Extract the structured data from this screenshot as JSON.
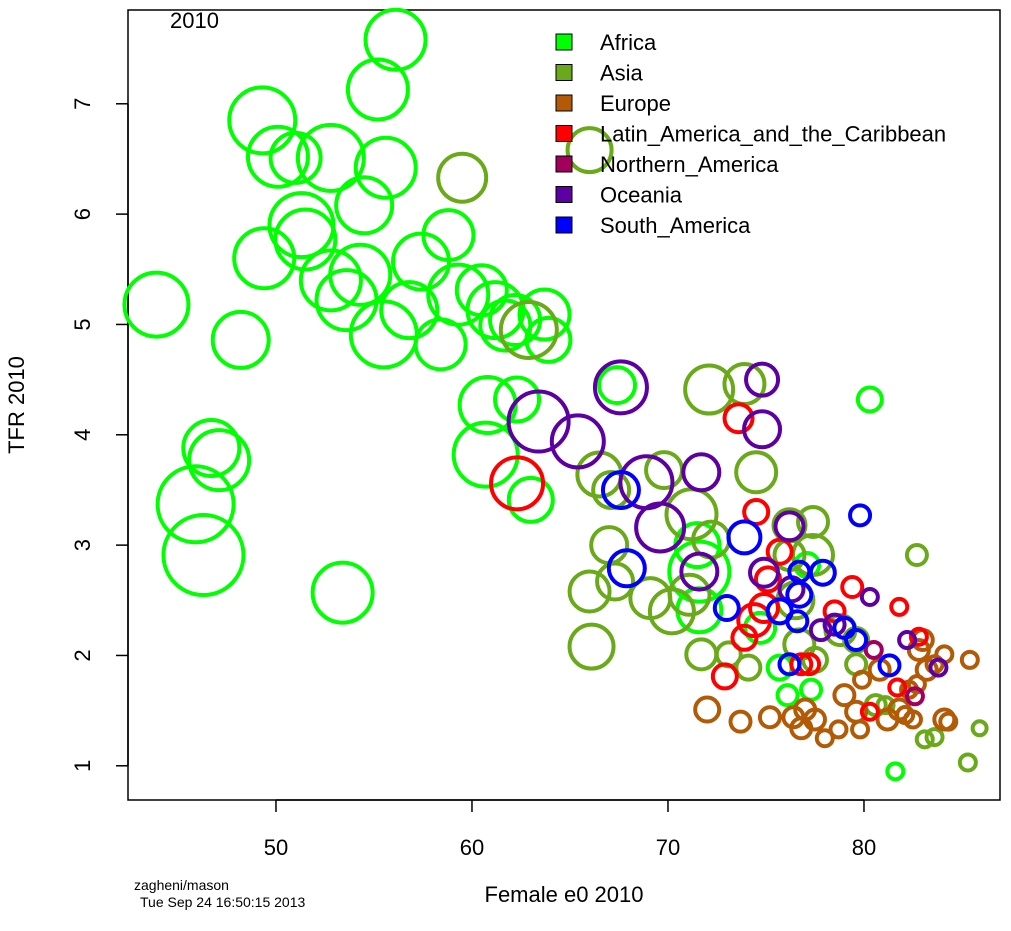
{
  "chart_data": {
    "type": "scatter",
    "annotation": "2010",
    "xlabel": "Female e0 2010",
    "ylabel": "TFR 2010",
    "footer": [
      "zagheni/mason",
      "Tue Sep 24 16:50:15 2013"
    ],
    "xlim": [
      42.45,
      86.94
    ],
    "ylim": [
      0.69,
      7.85
    ],
    "xticks": [
      50,
      60,
      70,
      80
    ],
    "yticks": [
      1,
      2,
      3,
      4,
      5,
      6,
      7
    ],
    "legend": "top-right",
    "series": [
      {
        "name": "Africa",
        "color": "#00ff00",
        "x": [
          56.1,
          55.2,
          49.3,
          50.1,
          51.0,
          52.8,
          55.6,
          54.5,
          51.3,
          51.5,
          49.4,
          43.9,
          48.2,
          52.8,
          54.3,
          53.6,
          55.5,
          56.8,
          57.4,
          58.8,
          58.4,
          59.3,
          60.5,
          61.2,
          61.7,
          62.2,
          63.7,
          63.9,
          60.8,
          62.3,
          60.7,
          46.7,
          47.1,
          45.9,
          46.3,
          53.4,
          63.0,
          67.4,
          71.5,
          71.6,
          71.6,
          74.7,
          77.1,
          80.3,
          81.6,
          77.3,
          75.7,
          76.1
        ],
        "values": [
          7.58,
          7.13,
          6.85,
          6.52,
          6.51,
          6.51,
          6.42,
          6.08,
          5.9,
          5.77,
          5.6,
          5.18,
          4.86,
          5.4,
          5.45,
          5.22,
          4.91,
          5.13,
          5.57,
          5.81,
          4.82,
          5.27,
          5.31,
          5.13,
          4.99,
          5.04,
          5.09,
          4.86,
          4.27,
          4.32,
          3.82,
          3.88,
          3.77,
          3.37,
          2.91,
          2.57,
          3.41,
          4.45,
          3.0,
          2.76,
          2.41,
          2.25,
          2.82,
          4.32,
          0.95,
          1.69,
          1.89,
          1.64
        ],
        "sizes": [
          3.0,
          3.0,
          3.3,
          3.0,
          2.5,
          3.3,
          3.0,
          2.8,
          3.2,
          3.0,
          3.0,
          3.2,
          2.8,
          3.0,
          3.0,
          3.0,
          3.3,
          2.8,
          2.8,
          2.5,
          2.5,
          3.0,
          2.5,
          2.8,
          2.5,
          2.5,
          2.5,
          2.2,
          2.8,
          2.2,
          3.2,
          2.8,
          3.0,
          3.8,
          4.0,
          3.0,
          2.2,
          1.8,
          2.2,
          3.0,
          2.2,
          1.5,
          1.2,
          1.2,
          0.8,
          1.0,
          1.2,
          1.0
        ]
      },
      {
        "name": "Asia",
        "color": "#6aaa1a",
        "x": [
          59.5,
          66.0,
          62.9,
          72.1,
          73.9,
          74.5,
          69.8,
          66.5,
          67.1,
          71.2,
          72.2,
          76.2,
          77.4,
          77.4,
          67.0,
          66.0,
          67.3,
          66.1,
          69.1,
          70.2,
          71.1,
          71.7,
          73.1,
          74.1,
          76.2,
          76.5,
          76.7,
          77.5,
          78.8,
          79.6,
          79.6,
          82.7,
          80.6,
          81.1,
          83.1,
          83.6,
          85.3,
          85.9
        ],
        "values": [
          6.33,
          6.58,
          4.95,
          4.41,
          4.46,
          3.66,
          3.68,
          3.64,
          3.5,
          3.28,
          3.05,
          3.18,
          3.21,
          2.91,
          3.0,
          2.58,
          2.67,
          2.08,
          2.52,
          2.4,
          2.55,
          2.01,
          2.01,
          1.89,
          2.91,
          2.5,
          2.1,
          1.96,
          2.23,
          2.14,
          1.92,
          2.91,
          1.55,
          1.55,
          1.24,
          1.26,
          1.03,
          1.34
        ],
        "sizes": [
          2.4,
          2.2,
          2.8,
          2.4,
          2.0,
          2.0,
          1.8,
          2.2,
          1.8,
          2.5,
          1.8,
          1.6,
          1.5,
          2.0,
          1.8,
          2.0,
          1.8,
          2.2,
          2.0,
          2.2,
          2.0,
          1.5,
          1.2,
          1.2,
          1.5,
          1.8,
          1.5,
          1.2,
          1.5,
          1.2,
          1.0,
          1.0,
          1.0,
          0.8,
          0.8,
          0.8,
          0.8,
          0.7
        ]
      },
      {
        "name": "Europe",
        "color": "#b35a06",
        "x": [
          72.0,
          73.7,
          75.2,
          76.4,
          76.8,
          77.5,
          78.0,
          78.7,
          79.0,
          79.6,
          79.8,
          81.2,
          80.8,
          82.1,
          82.5,
          82.8,
          83.0,
          83.2,
          83.6,
          84.1,
          85.4,
          84.1,
          84.3,
          81.8,
          82.3,
          79.9,
          82.7,
          77.0
        ],
        "values": [
          1.51,
          1.4,
          1.44,
          1.44,
          1.34,
          1.42,
          1.25,
          1.33,
          1.64,
          1.49,
          1.33,
          1.42,
          1.87,
          1.46,
          1.42,
          2.05,
          2.14,
          1.87,
          1.92,
          2.01,
          1.96,
          1.42,
          1.4,
          1.51,
          1.69,
          1.78,
          1.74,
          1.51
        ],
        "sizes": [
          1.2,
          1.0,
          1.0,
          1.0,
          1.0,
          1.0,
          0.8,
          0.8,
          1.0,
          1.0,
          0.8,
          1.0,
          1.0,
          0.8,
          0.8,
          1.0,
          1.0,
          1.0,
          0.8,
          0.8,
          0.8,
          1.0,
          0.8,
          1.0,
          0.8,
          0.8,
          0.8,
          1.0
        ]
      },
      {
        "name": "Latin_America_and_the_Caribbean",
        "color": "#ff0000",
        "x": [
          62.3,
          73.6,
          74.5,
          75.7,
          75.1,
          74.4,
          73.9,
          74.9,
          72.9,
          76.8,
          77.2,
          78.5,
          79.4,
          81.8,
          80.3,
          82.8,
          81.7
        ],
        "values": [
          3.56,
          4.15,
          3.3,
          2.94,
          2.69,
          2.32,
          2.16,
          2.43,
          1.81,
          1.92,
          1.92,
          2.4,
          2.62,
          2.44,
          1.49,
          2.17,
          1.71
        ],
        "sizes": [
          2.6,
          1.4,
          1.2,
          1.2,
          1.2,
          1.6,
          1.2,
          1.4,
          1.2,
          1.0,
          1.0,
          1.0,
          1.0,
          0.8,
          0.8,
          0.8,
          0.8
        ]
      },
      {
        "name": "Northern_America",
        "color": "#a3005e",
        "x": [
          80.5,
          82.6
        ],
        "values": [
          2.05,
          1.63
        ],
        "sizes": [
          0.8,
          0.8
        ]
      },
      {
        "name": "Oceania",
        "color": "#5c00a3",
        "x": [
          67.6,
          63.4,
          65.4,
          68.9,
          69.6,
          71.7,
          74.8,
          74.8,
          71.6,
          76.2,
          74.9,
          76.3,
          77.8,
          78.5,
          80.3,
          82.2,
          83.8
        ],
        "values": [
          4.43,
          4.12,
          3.94,
          3.57,
          3.16,
          3.66,
          4.5,
          4.05,
          2.76,
          3.17,
          2.75,
          2.6,
          2.23,
          2.28,
          2.53,
          2.14,
          1.89
        ],
        "sizes": [
          2.6,
          3.0,
          2.6,
          2.6,
          2.4,
          1.8,
          1.6,
          1.8,
          1.8,
          1.4,
          1.4,
          1.2,
          1.0,
          1.0,
          0.8,
          0.8,
          0.8
        ]
      },
      {
        "name": "South_America",
        "color": "#0000ff",
        "x": [
          67.6,
          67.9,
          73.9,
          73.0,
          75.7,
          76.7,
          76.7,
          76.6,
          77.9,
          76.2,
          79.0,
          79.6,
          79.8,
          81.3
        ],
        "values": [
          3.5,
          2.79,
          3.07,
          2.43,
          2.4,
          2.55,
          2.76,
          2.31,
          2.75,
          1.92,
          2.25,
          2.14,
          3.27,
          1.91
        ],
        "sizes": [
          1.8,
          1.8,
          1.6,
          1.2,
          1.2,
          1.2,
          1.0,
          1.0,
          1.2,
          1.0,
          1.0,
          1.0,
          1.0,
          1.0
        ]
      }
    ]
  }
}
